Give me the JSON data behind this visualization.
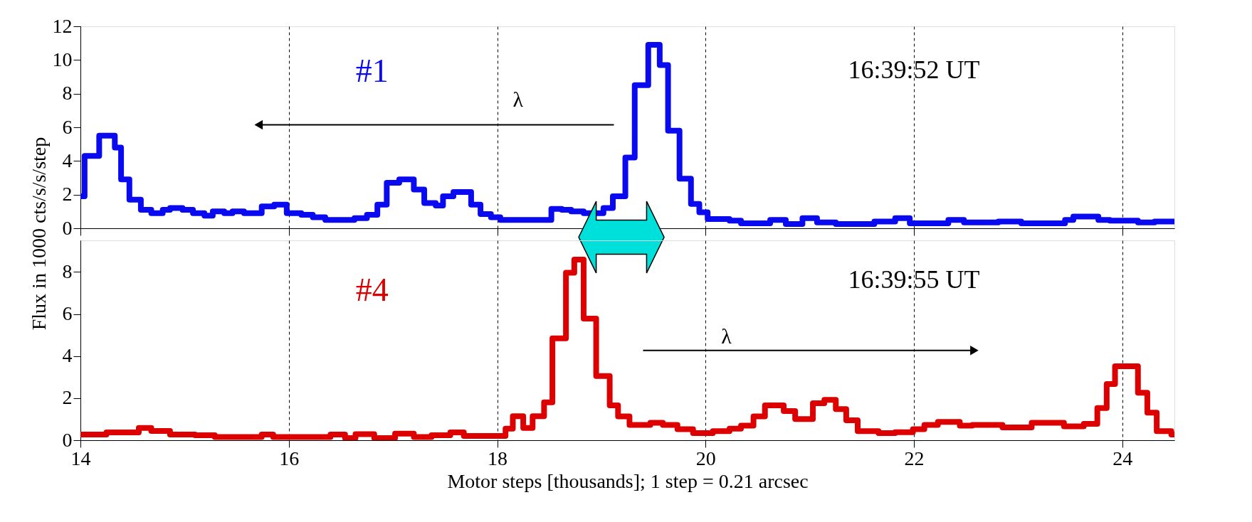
{
  "chart_data": [
    {
      "type": "step",
      "ylabel": "Flux in 1000 cts/s/s/step",
      "annotations": [
        "#1",
        "16:39:52 UT",
        "λ"
      ],
      "x": [
        14.0,
        14.04,
        14.18,
        14.33,
        14.39,
        14.47,
        14.58,
        14.68,
        14.79,
        14.86,
        14.98,
        15.08,
        15.19,
        15.27,
        15.38,
        15.46,
        15.57,
        15.74,
        15.86,
        15.98,
        16.12,
        16.23,
        16.35,
        16.63,
        16.75,
        16.85,
        16.94,
        17.06,
        17.2,
        17.3,
        17.41,
        17.48,
        17.58,
        17.75,
        17.84,
        17.94,
        18.03,
        18.52,
        18.62,
        18.71,
        18.83,
        19.02,
        19.11,
        19.23,
        19.32,
        19.45,
        19.56,
        19.64,
        19.75,
        19.86,
        19.94,
        20.02,
        20.23,
        20.34,
        20.62,
        20.77,
        20.93,
        21.07,
        21.25,
        21.62,
        21.82,
        21.96,
        22.33,
        22.48,
        22.81,
        23.03,
        23.45,
        23.53,
        23.77,
        23.88,
        24.15,
        24.31,
        24.5
      ],
      "series": [
        {
          "color": "#0a0af0",
          "values": [
            1.9,
            4.3,
            5.5,
            4.8,
            2.9,
            1.7,
            1.1,
            0.9,
            1.1,
            1.2,
            1.1,
            0.9,
            0.75,
            1.0,
            0.9,
            1.0,
            0.9,
            1.3,
            1.4,
            0.9,
            0.8,
            0.65,
            0.5,
            0.6,
            0.8,
            1.4,
            2.7,
            2.9,
            2.3,
            1.5,
            1.35,
            1.9,
            2.15,
            1.4,
            0.85,
            0.65,
            0.5,
            1.15,
            1.1,
            1.0,
            0.9,
            1.2,
            1.9,
            4.2,
            8.5,
            10.9,
            9.7,
            5.8,
            2.95,
            1.45,
            0.95,
            0.55,
            0.45,
            0.3,
            0.5,
            0.25,
            0.6,
            0.35,
            0.25,
            0.4,
            0.6,
            0.3,
            0.5,
            0.35,
            0.4,
            0.3,
            0.5,
            0.7,
            0.5,
            0.45,
            0.35,
            0.4,
            0.4
          ]
        }
      ],
      "xlim": [
        14,
        24.5
      ],
      "xticks": [
        14,
        16,
        18,
        20,
        22,
        24
      ],
      "ylim": [
        0,
        12
      ],
      "yticks": [
        0,
        2,
        4,
        6,
        8,
        10,
        12
      ],
      "grid": "x",
      "tick_labels": "y"
    },
    {
      "type": "step",
      "xlabel": "Motor steps [thousands]; 1 step = 0.21 arcsec",
      "annotations": [
        "#4",
        "16:39:55 UT",
        "λ"
      ],
      "x": [
        14.0,
        14.25,
        14.56,
        14.68,
        14.86,
        15.1,
        15.29,
        15.74,
        15.85,
        16.4,
        16.54,
        16.64,
        16.82,
        17.02,
        17.2,
        17.37,
        17.55,
        17.68,
        18.03,
        18.08,
        18.15,
        18.25,
        18.34,
        18.45,
        18.53,
        18.66,
        18.74,
        18.83,
        18.95,
        19.08,
        19.16,
        19.27,
        19.47,
        19.59,
        19.73,
        19.88,
        20.07,
        20.23,
        20.34,
        20.46,
        20.57,
        20.75,
        20.86,
        21.03,
        21.14,
        21.25,
        21.35,
        21.46,
        21.66,
        21.82,
        21.99,
        22.1,
        22.23,
        22.44,
        22.56,
        22.85,
        23.13,
        23.44,
        23.63,
        23.76,
        23.85,
        23.93,
        24.15,
        24.24,
        24.33,
        24.47,
        24.5
      ],
      "series": [
        {
          "color": "#dd0000",
          "values": [
            0.27,
            0.37,
            0.58,
            0.44,
            0.27,
            0.24,
            0.15,
            0.27,
            0.15,
            0.27,
            0.1,
            0.29,
            0.1,
            0.31,
            0.15,
            0.24,
            0.37,
            0.2,
            0.2,
            0.55,
            1.14,
            0.58,
            1.14,
            1.8,
            4.84,
            7.96,
            8.59,
            5.78,
            3.05,
            1.66,
            1.13,
            0.73,
            0.83,
            0.73,
            0.52,
            0.34,
            0.43,
            0.55,
            0.69,
            1.13,
            1.66,
            1.39,
            1.01,
            1.76,
            1.92,
            1.48,
            0.95,
            0.43,
            0.34,
            0.38,
            0.52,
            0.73,
            0.87,
            0.69,
            0.73,
            0.61,
            0.83,
            0.66,
            0.78,
            1.53,
            2.67,
            3.52,
            2.26,
            1.31,
            0.43,
            0.27,
            0.27
          ]
        }
      ],
      "xlim": [
        14,
        24.5
      ],
      "xticks": [
        14,
        16,
        18,
        20,
        22,
        24
      ],
      "ylim": [
        0,
        9.5
      ],
      "yticks": [
        0,
        2,
        4,
        6,
        8
      ],
      "grid": "x"
    }
  ]
}
